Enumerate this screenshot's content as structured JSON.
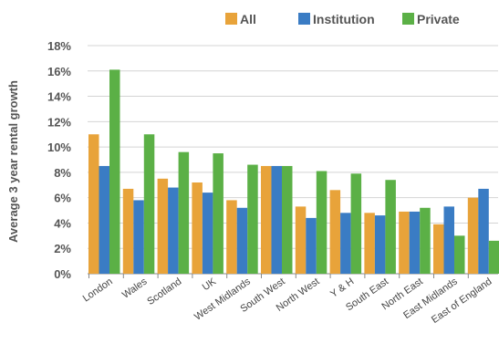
{
  "chart_data": {
    "type": "bar",
    "xlabel": "",
    "ylabel": "Average 3 year rental growth",
    "ylim": [
      0,
      18
    ],
    "yticks": [
      "0%",
      "2%",
      "4%",
      "6%",
      "8%",
      "10%",
      "12%",
      "14%",
      "16%",
      "18%"
    ],
    "grid": true,
    "legend_position": "top",
    "categories": [
      "London",
      "Wales",
      "Scotland",
      "UK",
      "West Midlands",
      "South West",
      "North West",
      "Y & H",
      "South East",
      "North East",
      "East Midlands",
      "East of England"
    ],
    "series": [
      {
        "name": "All",
        "color": "#E8A33A",
        "values": [
          11.0,
          6.7,
          7.5,
          7.2,
          5.8,
          8.5,
          5.3,
          6.6,
          4.8,
          4.9,
          3.9,
          6.0
        ]
      },
      {
        "name": "Institution",
        "color": "#3A7CC4",
        "values": [
          8.5,
          5.8,
          6.8,
          6.4,
          5.2,
          8.5,
          4.4,
          4.8,
          4.6,
          4.9,
          5.3,
          6.7
        ]
      },
      {
        "name": "Private",
        "color": "#5BB046",
        "values": [
          16.1,
          11.0,
          9.6,
          9.5,
          8.6,
          8.5,
          8.1,
          7.9,
          7.4,
          5.2,
          3.0,
          2.6
        ]
      }
    ]
  }
}
